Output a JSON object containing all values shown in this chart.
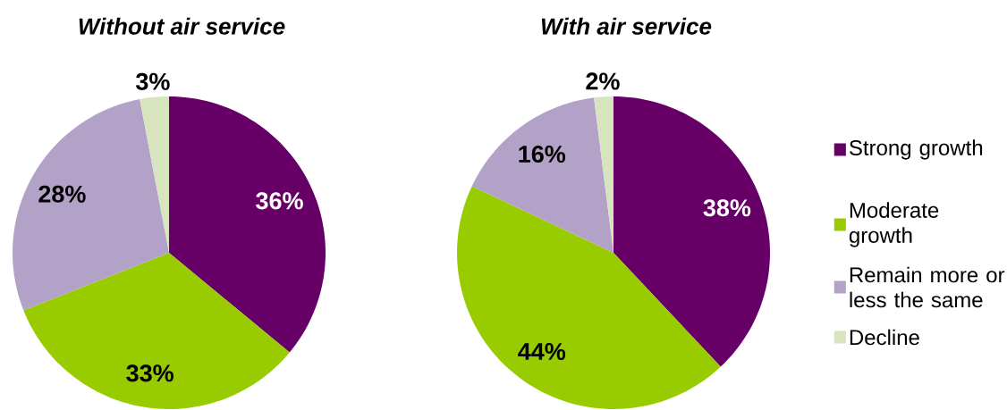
{
  "chart_data": [
    {
      "type": "pie",
      "title": "Without air service",
      "categories": [
        null,
        null,
        null,
        null
      ],
      "values": [
        36,
        33,
        28,
        3
      ],
      "value_labels": [
        "36%",
        "33%",
        "28%",
        "3%"
      ],
      "colors": [
        "#660066",
        "#99cc00",
        "#b3a2c7",
        "#d7e4bd"
      ],
      "legend": false
    },
    {
      "type": "pie",
      "title": "With air service",
      "categories": [
        "Strong growth",
        "Moderate growth",
        "Remain more or less the same",
        "Decline"
      ],
      "values": [
        38,
        44,
        16,
        2
      ],
      "value_labels": [
        "38%",
        "44%",
        "16%",
        "2%"
      ],
      "colors": [
        "#660066",
        "#99cc00",
        "#b3a2c7",
        "#d7e4bd"
      ],
      "legend": "right"
    }
  ]
}
